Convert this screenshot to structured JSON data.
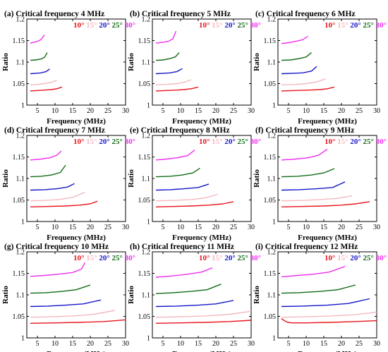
{
  "chart_data": [
    {
      "type": "line",
      "title": "(a) Critical frequency 4 MHz",
      "xlabel": "Frequency (MHz)",
      "ylabel": "Ratio",
      "xlim": [
        2,
        30
      ],
      "ylim": [
        1,
        1.2
      ],
      "xticks": [
        5,
        10,
        15,
        20,
        25,
        30
      ],
      "yticks": [
        1,
        1.05,
        1.1,
        1.15,
        1.2
      ],
      "series": [
        {
          "name": "10°",
          "color": "#e8141c",
          "x": [
            3,
            5,
            7,
            9,
            10.5,
            12
          ],
          "y": [
            1.033,
            1.034,
            1.035,
            1.036,
            1.038,
            1.042
          ]
        },
        {
          "name": "15°",
          "color": "#f4b8c0",
          "x": [
            3,
            5,
            7,
            9,
            10.5
          ],
          "y": [
            1.047,
            1.048,
            1.05,
            1.053,
            1.058
          ]
        },
        {
          "name": "20°",
          "color": "#1616c8",
          "x": [
            3,
            4.5,
            6,
            7.5,
            8.5
          ],
          "y": [
            1.073,
            1.074,
            1.075,
            1.078,
            1.084
          ]
        },
        {
          "name": "25°",
          "color": "#116b16",
          "x": [
            3,
            4.5,
            6,
            7,
            7.8
          ],
          "y": [
            1.104,
            1.105,
            1.107,
            1.111,
            1.122
          ]
        },
        {
          "name": "30°",
          "color": "#f02ef0",
          "x": [
            3,
            4,
            5,
            6,
            7
          ],
          "y": [
            1.144,
            1.146,
            1.148,
            1.152,
            1.163
          ]
        }
      ]
    },
    {
      "type": "line",
      "title": "(b) Critical frequency 5 MHz",
      "xlabel": "Frequency (MHz)",
      "ylabel": "Ratio",
      "xlim": [
        2,
        30
      ],
      "ylim": [
        1,
        1.2
      ],
      "xticks": [
        5,
        10,
        15,
        20,
        25,
        30
      ],
      "yticks": [
        1,
        1.05,
        1.1,
        1.15,
        1.2
      ],
      "series": [
        {
          "name": "10°",
          "color": "#e8141c",
          "x": [
            3,
            6,
            9,
            11,
            13,
            15
          ],
          "y": [
            1.033,
            1.034,
            1.035,
            1.036,
            1.038,
            1.042
          ]
        },
        {
          "name": "15°",
          "color": "#f4b8c0",
          "x": [
            3,
            6,
            9,
            11,
            13
          ],
          "y": [
            1.047,
            1.048,
            1.05,
            1.053,
            1.059
          ]
        },
        {
          "name": "20°",
          "color": "#1616c8",
          "x": [
            3,
            5,
            7,
            9,
            10.5
          ],
          "y": [
            1.073,
            1.074,
            1.075,
            1.078,
            1.085
          ]
        },
        {
          "name": "25°",
          "color": "#116b16",
          "x": [
            3,
            5,
            7,
            8.5,
            9.6
          ],
          "y": [
            1.104,
            1.105,
            1.108,
            1.112,
            1.122
          ]
        },
        {
          "name": "30°",
          "color": "#f02ef0",
          "x": [
            3,
            5,
            6.5,
            7.8,
            8.7
          ],
          "y": [
            1.144,
            1.146,
            1.148,
            1.154,
            1.172
          ]
        }
      ]
    },
    {
      "type": "line",
      "title": "(c) Critical frequency 6 MHz",
      "xlabel": "Frequency (MHz)",
      "ylabel": "Ratio",
      "xlim": [
        2,
        30
      ],
      "ylim": [
        1,
        1.2
      ],
      "xticks": [
        5,
        10,
        15,
        20,
        25,
        30
      ],
      "yticks": [
        1,
        1.05,
        1.1,
        1.15,
        1.2
      ],
      "series": [
        {
          "name": "10°",
          "color": "#e8141c",
          "x": [
            3,
            7,
            11,
            14,
            16,
            18
          ],
          "y": [
            1.033,
            1.034,
            1.035,
            1.036,
            1.038,
            1.042
          ]
        },
        {
          "name": "15°",
          "color": "#f4b8c0",
          "x": [
            3,
            7,
            10,
            13,
            15.5
          ],
          "y": [
            1.047,
            1.048,
            1.05,
            1.054,
            1.061
          ]
        },
        {
          "name": "20°",
          "color": "#1616c8",
          "x": [
            3,
            6,
            9,
            11.5,
            13
          ],
          "y": [
            1.073,
            1.074,
            1.075,
            1.079,
            1.09
          ]
        },
        {
          "name": "25°",
          "color": "#116b16",
          "x": [
            3,
            5.5,
            8,
            10,
            11.5
          ],
          "y": [
            1.104,
            1.105,
            1.108,
            1.112,
            1.122
          ]
        },
        {
          "name": "30°",
          "color": "#f02ef0",
          "x": [
            3,
            5,
            7,
            9,
            10.5
          ],
          "y": [
            1.143,
            1.145,
            1.148,
            1.152,
            1.16
          ]
        }
      ]
    },
    {
      "type": "line",
      "title": "(d) Critical frequency 7 MHz",
      "xlabel": "Frequency (MHz)",
      "ylabel": "Ratio",
      "xlim": [
        2,
        30
      ],
      "ylim": [
        1,
        1.2
      ],
      "xticks": [
        5,
        10,
        15,
        20,
        25,
        30
      ],
      "yticks": [
        1,
        1.05,
        1.1,
        1.15,
        1.2
      ],
      "series": [
        {
          "name": "10°",
          "color": "#e8141c",
          "x": [
            3,
            8,
            13,
            17,
            20,
            22
          ],
          "y": [
            1.034,
            1.035,
            1.036,
            1.038,
            1.041,
            1.047
          ]
        },
        {
          "name": "15°",
          "color": "#f4b8c0",
          "x": [
            3,
            7,
            11,
            15,
            18.5
          ],
          "y": [
            1.048,
            1.049,
            1.051,
            1.056,
            1.068
          ]
        },
        {
          "name": "20°",
          "color": "#1616c8",
          "x": [
            3,
            7,
            10.5,
            13.5,
            15.5
          ],
          "y": [
            1.073,
            1.074,
            1.076,
            1.08,
            1.088
          ]
        },
        {
          "name": "25°",
          "color": "#116b16",
          "x": [
            3,
            6,
            9,
            11.5,
            13
          ],
          "y": [
            1.104,
            1.105,
            1.108,
            1.114,
            1.131
          ]
        },
        {
          "name": "30°",
          "color": "#f02ef0",
          "x": [
            3,
            6,
            8.5,
            10.5,
            11.8
          ],
          "y": [
            1.143,
            1.145,
            1.148,
            1.154,
            1.164
          ]
        }
      ]
    },
    {
      "type": "line",
      "title": "(e) Critical frequency 8 MHz",
      "xlabel": "Frequency (MHz)",
      "ylabel": "Ratio",
      "xlim": [
        2,
        30
      ],
      "ylim": [
        1,
        1.2
      ],
      "xticks": [
        5,
        10,
        15,
        20,
        25,
        30
      ],
      "yticks": [
        1,
        1.05,
        1.1,
        1.15,
        1.2
      ],
      "series": [
        {
          "name": "10°",
          "color": "#e8141c",
          "x": [
            3,
            8,
            13,
            18,
            22,
            25
          ],
          "y": [
            1.034,
            1.035,
            1.036,
            1.038,
            1.041,
            1.046
          ]
        },
        {
          "name": "15°",
          "color": "#f4b8c0",
          "x": [
            3,
            8,
            13,
            17,
            20.5
          ],
          "y": [
            1.048,
            1.049,
            1.051,
            1.055,
            1.063
          ]
        },
        {
          "name": "20°",
          "color": "#1616c8",
          "x": [
            3,
            7,
            11,
            15,
            18
          ],
          "y": [
            1.073,
            1.074,
            1.076,
            1.079,
            1.087
          ]
        },
        {
          "name": "25°",
          "color": "#116b16",
          "x": [
            3,
            7,
            10.5,
            13.5,
            15.5
          ],
          "y": [
            1.104,
            1.105,
            1.108,
            1.113,
            1.124
          ]
        },
        {
          "name": "30°",
          "color": "#f02ef0",
          "x": [
            3,
            6,
            9,
            12,
            14
          ],
          "y": [
            1.143,
            1.145,
            1.148,
            1.153,
            1.166
          ]
        }
      ]
    },
    {
      "type": "line",
      "title": "(f) Critical frequency 9 MHz",
      "xlabel": "Frequency (MHz)",
      "ylabel": "Ratio",
      "xlim": [
        2,
        30
      ],
      "ylim": [
        1,
        1.2
      ],
      "xticks": [
        5,
        10,
        15,
        20,
        25,
        30
      ],
      "yticks": [
        1,
        1.05,
        1.1,
        1.15,
        1.2
      ],
      "series": [
        {
          "name": "10°",
          "color": "#e8141c",
          "x": [
            3,
            9,
            15,
            20,
            24,
            28
          ],
          "y": [
            1.034,
            1.035,
            1.036,
            1.038,
            1.041,
            1.046
          ]
        },
        {
          "name": "15°",
          "color": "#f4b8c0",
          "x": [
            3,
            9,
            14,
            19,
            23
          ],
          "y": [
            1.048,
            1.049,
            1.051,
            1.054,
            1.06
          ]
        },
        {
          "name": "20°",
          "color": "#1616c8",
          "x": [
            3,
            8,
            13,
            17.5,
            21
          ],
          "y": [
            1.073,
            1.074,
            1.076,
            1.079,
            1.092
          ]
        },
        {
          "name": "25°",
          "color": "#116b16",
          "x": [
            3,
            7.5,
            11.5,
            15,
            18
          ],
          "y": [
            1.104,
            1.105,
            1.108,
            1.113,
            1.123
          ]
        },
        {
          "name": "30°",
          "color": "#f02ef0",
          "x": [
            3,
            7,
            10.5,
            13.5,
            16
          ],
          "y": [
            1.143,
            1.145,
            1.148,
            1.154,
            1.168
          ]
        }
      ]
    },
    {
      "type": "line",
      "title": "(g) Critical frequency 10 MHz",
      "xlabel": "Frequency (MHz)",
      "ylabel": "Ratio",
      "xlim": [
        2,
        30
      ],
      "ylim": [
        1,
        1.2
      ],
      "xticks": [
        5,
        10,
        15,
        20,
        25,
        30
      ],
      "yticks": [
        1,
        1.05,
        1.1,
        1.15,
        1.2
      ],
      "series": [
        {
          "name": "10°",
          "color": "#e8141c",
          "x": [
            3,
            10,
            17,
            24,
            30
          ],
          "y": [
            1.034,
            1.035,
            1.036,
            1.038,
            1.042
          ]
        },
        {
          "name": "15°",
          "color": "#f4b8c0",
          "x": [
            3,
            9,
            15,
            21,
            27
          ],
          "y": [
            1.048,
            1.049,
            1.051,
            1.055,
            1.064
          ]
        },
        {
          "name": "20°",
          "color": "#1616c8",
          "x": [
            3,
            8,
            13,
            18,
            23
          ],
          "y": [
            1.073,
            1.074,
            1.076,
            1.079,
            1.088
          ]
        },
        {
          "name": "25°",
          "color": "#116b16",
          "x": [
            3,
            7.5,
            12,
            16,
            20
          ],
          "y": [
            1.104,
            1.105,
            1.108,
            1.112,
            1.123
          ]
        },
        {
          "name": "30°",
          "color": "#f02ef0",
          "x": [
            3,
            7,
            11,
            15,
            17.5,
            18.5
          ],
          "y": [
            1.143,
            1.145,
            1.148,
            1.152,
            1.16,
            1.175
          ]
        }
      ]
    },
    {
      "type": "line",
      "title": "(h) Critical frequency 11 MHz",
      "xlabel": "Frequency (MHz)",
      "ylabel": "Ratio",
      "xlim": [
        2,
        30
      ],
      "ylim": [
        1,
        1.2
      ],
      "xticks": [
        5,
        10,
        15,
        20,
        25,
        30
      ],
      "yticks": [
        1,
        1.05,
        1.1,
        1.15,
        1.2
      ],
      "series": [
        {
          "name": "10°",
          "color": "#e8141c",
          "x": [
            3,
            10,
            17,
            24,
            30
          ],
          "y": [
            1.034,
            1.035,
            1.036,
            1.038,
            1.041
          ]
        },
        {
          "name": "15°",
          "color": "#f4b8c0",
          "x": [
            3,
            10,
            17,
            24,
            30
          ],
          "y": [
            1.048,
            1.049,
            1.051,
            1.055,
            1.062
          ]
        },
        {
          "name": "20°",
          "color": "#1616c8",
          "x": [
            3,
            9,
            15,
            20,
            25
          ],
          "y": [
            1.073,
            1.074,
            1.076,
            1.079,
            1.087
          ]
        },
        {
          "name": "25°",
          "color": "#116b16",
          "x": [
            3,
            8,
            13,
            17.5,
            21.5
          ],
          "y": [
            1.103,
            1.105,
            1.108,
            1.112,
            1.125
          ]
        },
        {
          "name": "30°",
          "color": "#f02ef0",
          "x": [
            3,
            7.5,
            12,
            16,
            19
          ],
          "y": [
            1.141,
            1.144,
            1.148,
            1.153,
            1.163
          ]
        }
      ]
    },
    {
      "type": "line",
      "title": "(i) Critical frequency 12 MHz",
      "xlabel": "Frequency (MHz)",
      "ylabel": "Ratio",
      "xlim": [
        2,
        30
      ],
      "ylim": [
        1,
        1.2
      ],
      "xticks": [
        5,
        10,
        15,
        20,
        25,
        30
      ],
      "yticks": [
        1,
        1.05,
        1.1,
        1.15,
        1.2
      ],
      "series": [
        {
          "name": "10°",
          "color": "#e8141c",
          "x": [
            3,
            3.8,
            4.8,
            6,
            10,
            17,
            24,
            30
          ],
          "y": [
            1.045,
            1.04,
            1.036,
            1.035,
            1.035,
            1.036,
            1.038,
            1.04
          ]
        },
        {
          "name": "15°",
          "color": "#f4b8c0",
          "x": [
            3,
            10,
            17,
            24,
            30
          ],
          "y": [
            1.048,
            1.049,
            1.051,
            1.054,
            1.06
          ]
        },
        {
          "name": "20°",
          "color": "#1616c8",
          "x": [
            3,
            9,
            16,
            22,
            28
          ],
          "y": [
            1.073,
            1.074,
            1.076,
            1.08,
            1.091
          ]
        },
        {
          "name": "25°",
          "color": "#116b16",
          "x": [
            3,
            8,
            14,
            19,
            24
          ],
          "y": [
            1.104,
            1.105,
            1.108,
            1.112,
            1.123
          ]
        },
        {
          "name": "30°",
          "color": "#f02ef0",
          "x": [
            3,
            7.5,
            12,
            16.5,
            21
          ],
          "y": [
            1.142,
            1.145,
            1.148,
            1.153,
            1.166
          ]
        }
      ]
    }
  ]
}
